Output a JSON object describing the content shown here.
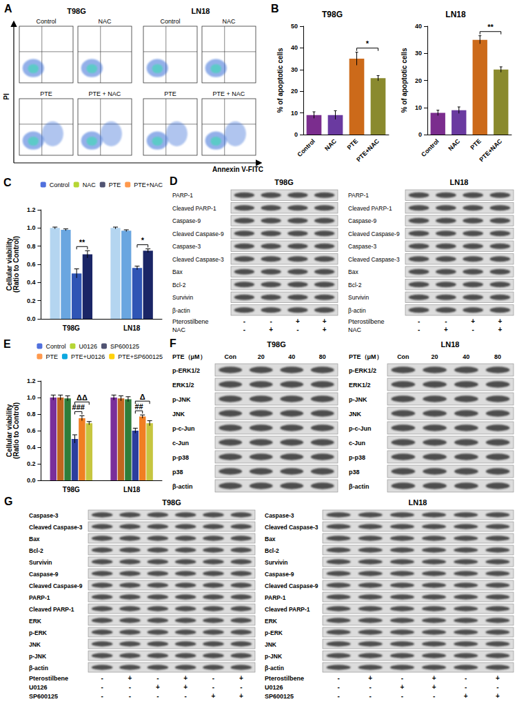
{
  "figure": {
    "A": {
      "letter": "A",
      "cell_lines": [
        "T98G",
        "LN18"
      ],
      "conditions": [
        [
          "Control",
          "NAC"
        ],
        [
          "PTE",
          "PTE + NAC"
        ]
      ],
      "y_label": "PI",
      "x_label": "Annexin V-FITC"
    },
    "D": {
      "letter": "D",
      "blots": [
        {
          "title": "T98G",
          "rows": [
            "PARP-1",
            "Cleaved PARP-1",
            "Caspase-9",
            "Cleaved Caspase-9",
            "Caspase-3",
            "Cleaved Caspase-3",
            "Bax",
            "Bcl-2",
            "Survivin",
            "β-actin"
          ],
          "treatments": [
            {
              "label": "Pterostilbene",
              "signs": [
                "-",
                "-",
                "+",
                "+"
              ]
            },
            {
              "label": "NAC",
              "signs": [
                "-",
                "+",
                "-",
                "+"
              ]
            }
          ]
        },
        {
          "title": "LN18",
          "rows": [
            "PARP-1",
            "Cleaved PARP-1",
            "Caspase-9",
            "Cleaved Caspase-9",
            "Caspase-3",
            "Cleaved Caspase-3",
            "Bax",
            "Bcl-2",
            "Survivin",
            "β-actin"
          ],
          "treatments": [
            {
              "label": "Pterostilbene",
              "signs": [
                "-",
                "-",
                "+",
                "+"
              ]
            },
            {
              "label": "NAC",
              "signs": [
                "-",
                "+",
                "-",
                "+"
              ]
            }
          ]
        }
      ]
    },
    "F": {
      "letter": "F",
      "blots": [
        {
          "title": "T98G",
          "header": {
            "label": "PTE（μM）",
            "lanes": [
              "Con",
              "20",
              "40",
              "80"
            ]
          },
          "rows": [
            "p-ERK1/2",
            "ERK1/2",
            "p-JNK",
            "JNK",
            "p-c-Jun",
            "c-Jun",
            "p-p38",
            "p38",
            "β-actin"
          ]
        },
        {
          "title": "LN18",
          "header": {
            "label": "PTE（μM）",
            "lanes": [
              "Con",
              "20",
              "40",
              "80"
            ]
          },
          "rows": [
            "p-ERK1/2",
            "ERK1/2",
            "p-JNK",
            "JNK",
            "p-c-Jun",
            "c-Jun",
            "p-p38",
            "p38",
            "β-actin"
          ]
        }
      ]
    },
    "G": {
      "letter": "G",
      "blots": [
        {
          "title": "T98G",
          "rows": [
            "Caspase-3",
            "Cleaved Caspase-3",
            "Bax",
            "Bcl-2",
            "Survivin",
            "Caspase-9",
            "Cleaved Caspase-9",
            "PARP-1",
            "Cleaved PARP-1",
            "ERK",
            "p-ERK",
            "JNK",
            "p-JNK",
            "β-actin"
          ],
          "treatments": [
            {
              "label": "Pterostilbene",
              "signs": [
                "-",
                "+",
                "-",
                "+",
                "-",
                "+"
              ]
            },
            {
              "label": "U0126",
              "signs": [
                "-",
                "-",
                "+",
                "+",
                "-",
                "-"
              ]
            },
            {
              "label": "SP600125",
              "signs": [
                "-",
                "-",
                "-",
                "-",
                "+",
                "+"
              ]
            }
          ]
        },
        {
          "title": "LN18",
          "rows": [
            "Caspase-3",
            "Cleaved Caspase-3",
            "Bax",
            "Bcl-2",
            "Survivin",
            "Caspase-9",
            "Cleaved Caspase-9",
            "PARP-1",
            "Cleaved PARP-1",
            "ERK",
            "p-ERK",
            "JNK",
            "p-JNK",
            "β-actin"
          ],
          "treatments": [
            {
              "label": "Pterostilbene",
              "signs": [
                "-",
                "+",
                "-",
                "+",
                "-",
                "+"
              ]
            },
            {
              "label": "U0126",
              "signs": [
                "-",
                "-",
                "+",
                "+",
                "-",
                "-"
              ]
            },
            {
              "label": "SP600125",
              "signs": [
                "-",
                "-",
                "-",
                "-",
                "+",
                "+"
              ]
            }
          ]
        }
      ]
    }
  },
  "chart_data": [
    {
      "letter": "B",
      "type": "bar",
      "title": "T98G",
      "y_label": "% of apoptotic cells",
      "categories": [
        "Control",
        "NAC",
        "PTE",
        "PTE+NAC"
      ],
      "values": [
        9,
        9,
        35,
        26
      ],
      "errors": [
        1.5,
        2,
        3,
        1.2
      ],
      "colors": [
        "#7b2d8e",
        "#6a3aa0",
        "#cc6a1a",
        "#8a8a2e"
      ],
      "ylim": [
        0,
        50
      ],
      "yticks": [
        0,
        10,
        20,
        30,
        40,
        50
      ],
      "grid": false,
      "annotations": [
        {
          "text": "*",
          "between": [
            "PTE",
            "PTE+NAC"
          ]
        }
      ]
    },
    {
      "type": "bar",
      "title": "LN18",
      "y_label": "% of apoptotic cells",
      "categories": [
        "Control",
        "NAC",
        "PTE",
        "PTE+NAC"
      ],
      "values": [
        8,
        9,
        35,
        24
      ],
      "errors": [
        1,
        1.2,
        1.5,
        1
      ],
      "colors": [
        "#7b2d8e",
        "#6a3aa0",
        "#cc6a1a",
        "#8a8a2e"
      ],
      "ylim": [
        0,
        40
      ],
      "yticks": [
        0,
        10,
        20,
        30,
        40
      ],
      "grid": false,
      "annotations": [
        {
          "text": "**",
          "between": [
            "PTE",
            "PTE+NAC"
          ]
        }
      ]
    },
    {
      "letter": "C",
      "type": "bar",
      "y_label": "Cellular viability\n(Ratio to Control)",
      "categories": [
        "T98G",
        "LN18"
      ],
      "series": [
        {
          "name": "Control",
          "color": "#b4d5f0",
          "values": [
            1.0,
            1.0
          ],
          "errors": [
            0.01,
            0.01
          ]
        },
        {
          "name": "NAC",
          "color": "#6aa6e0",
          "values": [
            0.98,
            0.97
          ],
          "errors": [
            0.01,
            0.01
          ]
        },
        {
          "name": "PTE",
          "color": "#2f55b5",
          "values": [
            0.5,
            0.56
          ],
          "errors": [
            0.05,
            0.02
          ]
        },
        {
          "name": "PTE+NAC",
          "color": "#1a2566",
          "values": [
            0.71,
            0.75
          ],
          "errors": [
            0.04,
            0.02
          ]
        }
      ],
      "ylim": [
        0,
        1.2
      ],
      "yticks": [
        {
          "value": 0,
          "label": "0.0"
        },
        0.2,
        0.4,
        0.6,
        0.8,
        {
          "value": 1,
          "label": "1.0"
        },
        1.2
      ],
      "grid": false,
      "legend": "upper right",
      "annotations": [
        {
          "text": "**",
          "category": "T98G",
          "between": [
            "PTE",
            "PTE+NAC"
          ]
        },
        {
          "text": "*",
          "category": "LN18",
          "between": [
            "PTE",
            "PTE+NAC"
          ]
        }
      ]
    },
    {
      "letter": "E",
      "type": "bar",
      "y_label": "Cellular viability\n(Ratio to Control)",
      "categories": [
        "T98G",
        "LN18"
      ],
      "series": [
        {
          "name": "Control",
          "color": "#7a2f9a",
          "values": [
            1.0,
            1.0
          ],
          "errors": [
            0.03,
            0.03
          ]
        },
        {
          "name": "U0126",
          "color": "#c0661e",
          "values": [
            1.0,
            0.99
          ],
          "errors": [
            0.03,
            0.03
          ]
        },
        {
          "name": "SP600125",
          "color": "#2f7d3a",
          "values": [
            0.99,
            0.98
          ],
          "errors": [
            0.03,
            0.03
          ]
        },
        {
          "name": "PTE",
          "color": "#2c3e9e",
          "values": [
            0.5,
            0.6
          ],
          "errors": [
            0.05,
            0.03
          ]
        },
        {
          "name": "PTE+U0126",
          "color": "#f07f22",
          "values": [
            0.75,
            0.77
          ],
          "errors": [
            0.03,
            0.02
          ]
        },
        {
          "name": "PTE+SP600125",
          "color": "#c6c640",
          "values": [
            0.69,
            0.69
          ],
          "errors": [
            0.02,
            0.03
          ]
        }
      ],
      "ylim": [
        0,
        1.2
      ],
      "yticks": [
        {
          "value": 0,
          "label": "0.0"
        },
        0.2,
        0.4,
        0.6,
        0.8,
        {
          "value": 1,
          "label": "1.0"
        },
        1.2
      ],
      "grid": false,
      "legend": "upper right",
      "annotations": [
        {
          "text": "###",
          "category": "T98G",
          "between": [
            "PTE",
            "PTE+U0126"
          ]
        },
        {
          "text": "ΔΔ",
          "category": "T98G",
          "between": [
            "PTE",
            "PTE+SP600125"
          ]
        },
        {
          "text": "##",
          "category": "LN18",
          "between": [
            "PTE",
            "PTE+U0126"
          ]
        },
        {
          "text": "Δ",
          "category": "LN18",
          "between": [
            "PTE",
            "PTE+SP600125"
          ]
        }
      ]
    }
  ]
}
